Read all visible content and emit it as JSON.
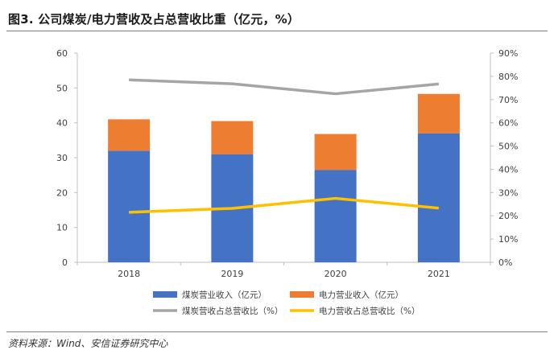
{
  "figure": {
    "title": "图3. 公司煤炭/电力营收及占总营收比重（亿元，%）",
    "source": "资料来源：Wind、安信证券研究中心"
  },
  "chart_data": {
    "type": "bar",
    "stacked": true,
    "categories": [
      "2018",
      "2019",
      "2020",
      "2021"
    ],
    "series": [
      {
        "name": "煤炭营业收入（亿元）",
        "kind": "bar",
        "axis": "left",
        "color": "#4472C4",
        "values": [
          32.0,
          31.0,
          26.5,
          37.0
        ]
      },
      {
        "name": "电力营业收入（亿元）",
        "kind": "bar",
        "axis": "left",
        "color": "#ED7D31",
        "values": [
          9.0,
          9.5,
          10.3,
          11.3
        ]
      },
      {
        "name": "煤炭营收占总营收比（%）",
        "kind": "line",
        "axis": "right",
        "color": "#A5A5A5",
        "values": [
          78.5,
          76.8,
          72.5,
          76.7
        ]
      },
      {
        "name": "电力营收占总营收比（%）",
        "kind": "line",
        "axis": "right",
        "color": "#FFC000",
        "values": [
          21.5,
          23.2,
          27.5,
          23.3
        ]
      }
    ],
    "y_left": {
      "min": 0,
      "max": 60,
      "ticks": [
        "0",
        "10",
        "20",
        "30",
        "40",
        "50",
        "60"
      ]
    },
    "y_right": {
      "min": 0,
      "max": 90,
      "ticks": [
        "0%",
        "10%",
        "20%",
        "30%",
        "40%",
        "50%",
        "60%",
        "70%",
        "80%",
        "90%"
      ]
    },
    "grid": false,
    "legend_position": "bottom"
  }
}
